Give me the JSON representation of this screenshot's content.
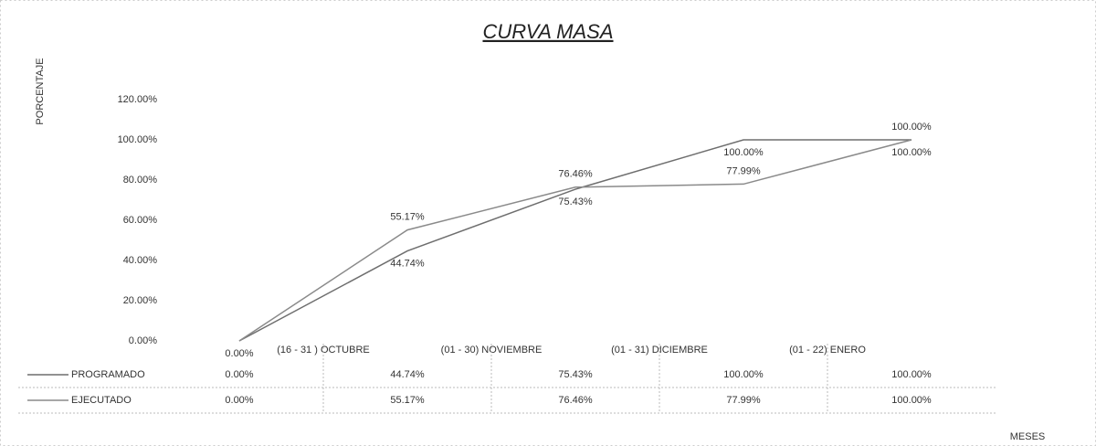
{
  "chart_data": {
    "type": "line",
    "title": "CURVA MASA",
    "y_label": "PORCENTAJE",
    "x_label": "MESES",
    "categories": [
      null,
      "(16 - 31 ) OCTUBRE",
      "(01 - 30) NOVIEMBRE",
      "(01 - 31) DICIEMBRE",
      "(01 - 22) ENERO"
    ],
    "series": [
      {
        "name": "PROGRAMADO",
        "color": "#6e6e6e",
        "values": [
          0,
          44.74,
          75.43,
          100,
          100
        ],
        "value_labels": [
          "0.00%",
          "44.74%",
          "75.43%",
          "100.00%",
          "100.00%"
        ]
      },
      {
        "name": "EJECUTADO",
        "color": "#8a8a8a",
        "values": [
          0,
          55.17,
          76.46,
          77.99,
          100
        ],
        "value_labels": [
          "0.00%",
          "55.17%",
          "76.46%",
          "77.99%",
          "100.00%"
        ]
      }
    ],
    "ylim": [
      0,
      120
    ],
    "yticks": [
      {
        "value": 0,
        "label": "0.00%"
      },
      {
        "value": 20,
        "label": "20.00%"
      },
      {
        "value": 40,
        "label": "40.00%"
      },
      {
        "value": 60,
        "label": "60.00%"
      },
      {
        "value": 80,
        "label": "80.00%"
      },
      {
        "value": 100,
        "label": "100.00%"
      },
      {
        "value": 120,
        "label": "120.00%"
      }
    ],
    "data_table": true
  }
}
